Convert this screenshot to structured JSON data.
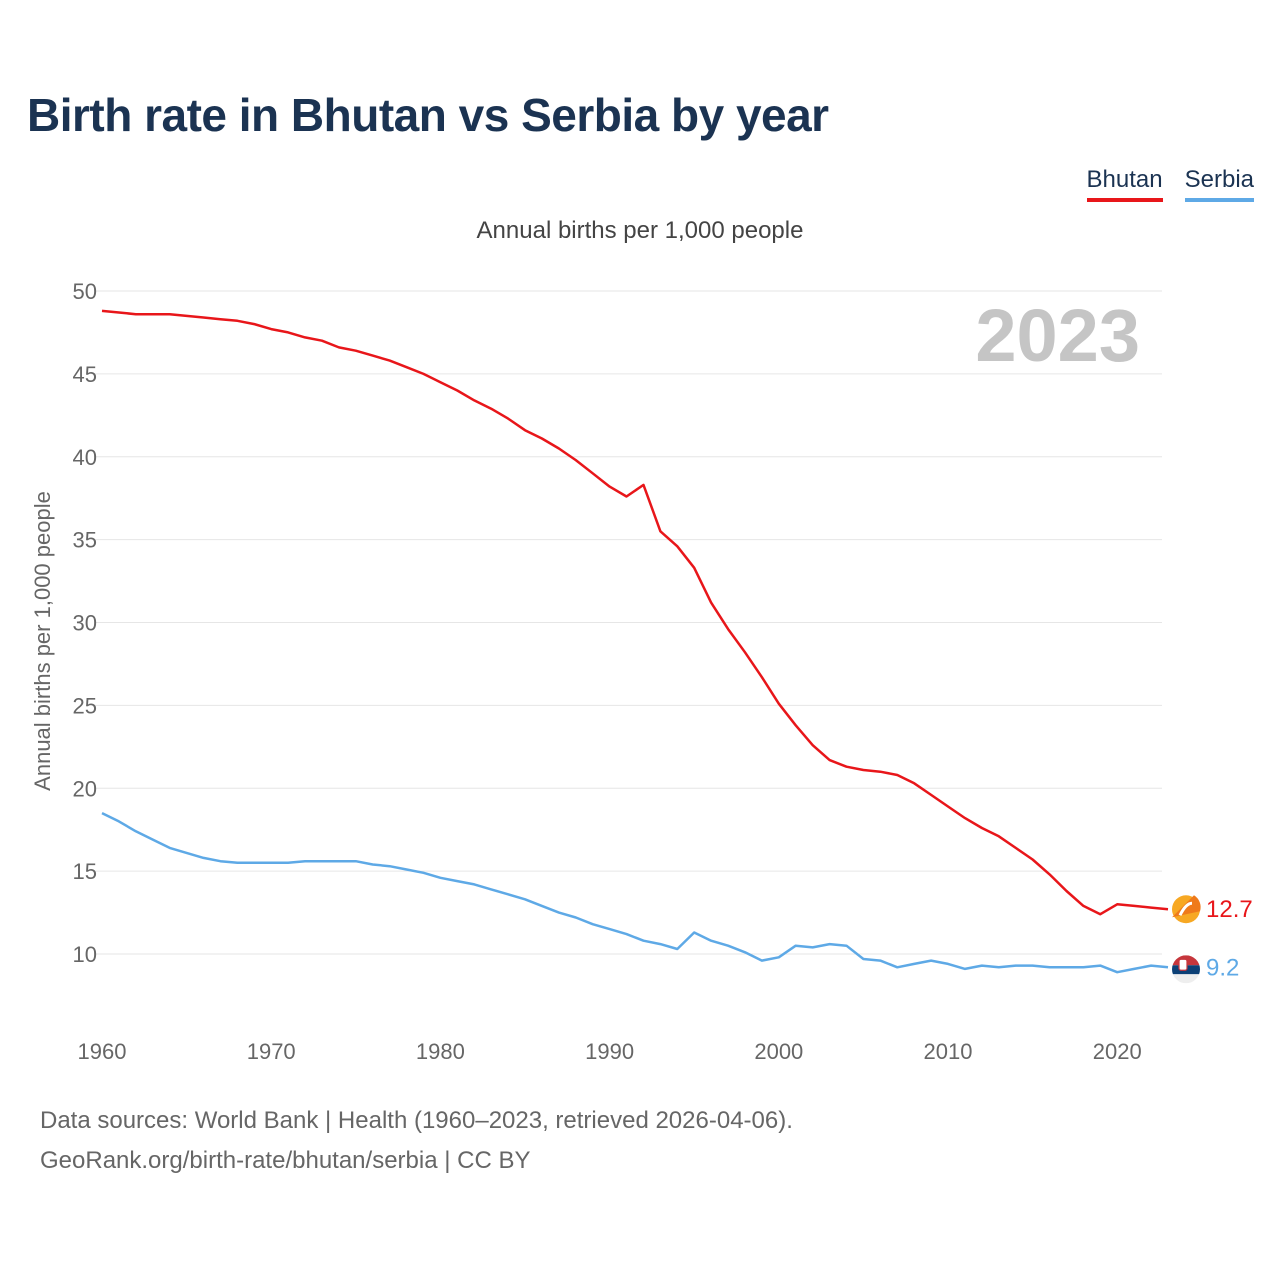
{
  "title": "Birth rate in Bhutan vs Serbia by year",
  "subtitle": "Annual births per 1,000 people",
  "legend": [
    {
      "name": "Bhutan",
      "color": "#e8161a"
    },
    {
      "name": "Serbia",
      "color": "#5ea9e6"
    }
  ],
  "year_label": "2023",
  "source_line1": "Data sources: World Bank | Health (1960–2023, retrieved 2026-04-06).",
  "source_line2": "GeoRank.org/birth-rate/bhutan/serbia | CC BY",
  "chart_data": {
    "type": "line",
    "title": "Birth rate in Bhutan vs Serbia by year",
    "xlabel": "",
    "ylabel": "Annual births per 1,000 people",
    "xlim": [
      1960,
      2023
    ],
    "ylim": [
      5,
      50
    ],
    "yticks": [
      10,
      15,
      20,
      25,
      30,
      35,
      40,
      45,
      50
    ],
    "xticks": [
      1960,
      1970,
      1980,
      1990,
      2000,
      2010,
      2020
    ],
    "x": [
      1960,
      1961,
      1962,
      1963,
      1964,
      1965,
      1966,
      1967,
      1968,
      1969,
      1970,
      1971,
      1972,
      1973,
      1974,
      1975,
      1976,
      1977,
      1978,
      1979,
      1980,
      1981,
      1982,
      1983,
      1984,
      1985,
      1986,
      1987,
      1988,
      1989,
      1990,
      1991,
      1992,
      1993,
      1994,
      1995,
      1996,
      1997,
      1998,
      1999,
      2000,
      2001,
      2002,
      2003,
      2004,
      2005,
      2006,
      2007,
      2008,
      2009,
      2010,
      2011,
      2012,
      2013,
      2014,
      2015,
      2016,
      2017,
      2018,
      2019,
      2020,
      2021,
      2022,
      2023
    ],
    "series": [
      {
        "name": "Bhutan",
        "color": "#e8161a",
        "end_label": "12.7",
        "values": [
          48.8,
          48.7,
          48.6,
          48.6,
          48.6,
          48.5,
          48.4,
          48.3,
          48.2,
          48.0,
          47.7,
          47.5,
          47.2,
          47.0,
          46.6,
          46.4,
          46.1,
          45.8,
          45.4,
          45.0,
          44.5,
          44.0,
          43.4,
          42.9,
          42.3,
          41.6,
          41.1,
          40.5,
          39.8,
          39.0,
          38.2,
          37.6,
          38.3,
          35.5,
          34.6,
          33.3,
          31.2,
          29.6,
          28.2,
          26.7,
          25.1,
          23.8,
          22.6,
          21.7,
          21.3,
          21.1,
          21.0,
          20.8,
          20.3,
          19.6,
          18.9,
          18.2,
          17.6,
          17.1,
          16.4,
          15.7,
          14.8,
          13.8,
          12.9,
          12.4,
          13.0,
          12.9,
          12.8,
          12.7
        ]
      },
      {
        "name": "Serbia",
        "color": "#5ea9e6",
        "end_label": "9.2",
        "values": [
          18.5,
          18.0,
          17.4,
          16.9,
          16.4,
          16.1,
          15.8,
          15.6,
          15.5,
          15.5,
          15.5,
          15.5,
          15.6,
          15.6,
          15.6,
          15.6,
          15.4,
          15.3,
          15.1,
          14.9,
          14.6,
          14.4,
          14.2,
          13.9,
          13.6,
          13.3,
          12.9,
          12.5,
          12.2,
          11.8,
          11.5,
          11.2,
          10.8,
          10.6,
          10.3,
          11.3,
          10.8,
          10.5,
          10.1,
          9.6,
          9.8,
          10.5,
          10.4,
          10.6,
          10.5,
          9.7,
          9.6,
          9.2,
          9.4,
          9.6,
          9.4,
          9.1,
          9.3,
          9.2,
          9.3,
          9.3,
          9.2,
          9.2,
          9.2,
          9.3,
          8.9,
          9.1,
          9.3,
          9.2
        ]
      }
    ]
  }
}
